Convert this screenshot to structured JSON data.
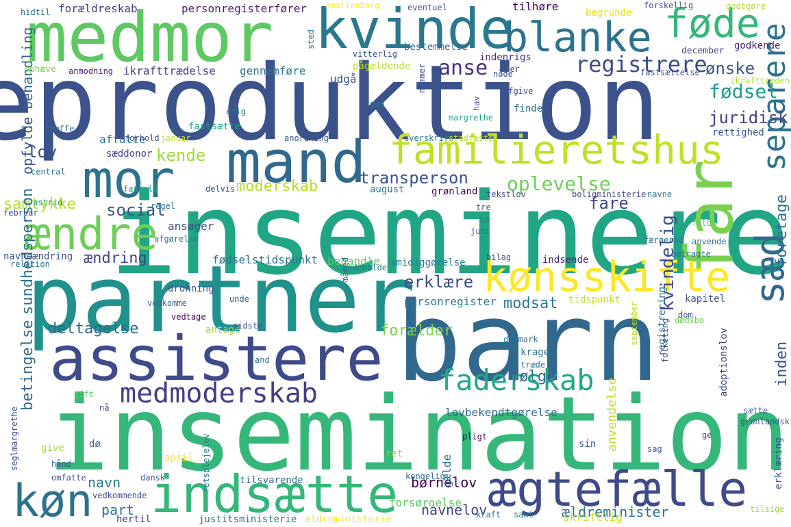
{
  "words": [
    {
      "text": "reproduktion",
      "color": "#3b528b"
    },
    {
      "text": "inseminere",
      "color": "#21a685"
    },
    {
      "text": "insemination",
      "color": "#35b779"
    },
    {
      "text": "barn",
      "color": "#31688e"
    },
    {
      "text": "partner",
      "color": "#21918c"
    },
    {
      "text": "medmor",
      "color": "#5ec962"
    },
    {
      "text": "assistere",
      "color": "#3e4a89"
    },
    {
      "text": "kvinde",
      "color": "#2a788e"
    },
    {
      "text": "familieretshus",
      "color": "#c2df23"
    },
    {
      "text": "far",
      "color": "#7ad151"
    },
    {
      "text": "mand",
      "color": "#31688e"
    },
    {
      "text": "blanke",
      "color": "#2c728e"
    },
    {
      "text": "føde",
      "color": "#35b779"
    },
    {
      "text": "mor",
      "color": "#2c728e"
    },
    {
      "text": "kønsskifte",
      "color": "#fde725"
    },
    {
      "text": "indsætte",
      "color": "#35b779"
    },
    {
      "text": "ægtefælle",
      "color": "#3e4a89"
    },
    {
      "text": "ændre",
      "color": "#6ece58"
    },
    {
      "text": "køn",
      "color": "#2c728e"
    },
    {
      "text": "sæd",
      "color": "#31688e"
    },
    {
      "text": "separere",
      "color": "#2c728e"
    },
    {
      "text": "medmoderskab",
      "color": "#433e85"
    },
    {
      "text": "faderskab",
      "color": "#22a884"
    },
    {
      "text": "registrere",
      "color": "#3e4a89"
    },
    {
      "text": "fødsel",
      "color": "#1f9e89"
    },
    {
      "text": "anse",
      "color": "#46327e"
    },
    {
      "text": "ønske",
      "color": "#3b528b"
    },
    {
      "text": "juridisk",
      "color": "#414487"
    },
    {
      "text": "transperson",
      "color": "#3b528b"
    },
    {
      "text": "oplevelse",
      "color": "#6ece58"
    },
    {
      "text": "fare",
      "color": "#3e4a89"
    },
    {
      "text": "social",
      "color": "#3b528b"
    },
    {
      "text": "kende",
      "color": "#9fda3a"
    },
    {
      "text": "lov",
      "color": "#3b528b"
    },
    {
      "text": "moderskab",
      "color": "#b5de2b"
    },
    {
      "text": "samtykke",
      "color": "#b5de2b"
    },
    {
      "text": "opfylde",
      "color": "#3b528b"
    },
    {
      "text": "behandling",
      "color": "#31688e"
    },
    {
      "text": "sundhedsperson",
      "color": "#2c728e"
    },
    {
      "text": "kvindelig",
      "color": "#3e4a89"
    },
    {
      "text": "erklære",
      "color": "#3e4a89"
    },
    {
      "text": "deltagelse",
      "color": "#31688e"
    },
    {
      "text": "modsat",
      "color": "#2a788e"
    },
    {
      "text": "forælder",
      "color": "#7ad151"
    },
    {
      "text": "ændring",
      "color": "#414487"
    },
    {
      "text": "følge",
      "color": "#31688e"
    },
    {
      "text": "foretage",
      "color": "#2c728e"
    },
    {
      "text": "inden",
      "color": "#3b528b"
    },
    {
      "text": "betingelse",
      "color": "#31688e"
    },
    {
      "text": "navn",
      "color": "#2a788e"
    },
    {
      "text": "part",
      "color": "#2c728e"
    },
    {
      "text": "børnelov",
      "color": "#440154"
    },
    {
      "text": "navnelov",
      "color": "#433e85"
    },
    {
      "text": "ældreminister",
      "color": "#2c728e"
    },
    {
      "text": "anvendelse",
      "color": "#c2df23"
    },
    {
      "text": "forældreskab",
      "color": "#433e85"
    },
    {
      "text": "personregisterfører",
      "color": "#481f70"
    },
    {
      "text": "ikrafttrædelse",
      "color": "#433e85"
    },
    {
      "text": "gennemføre",
      "color": "#2a788e"
    },
    {
      "text": "udgå",
      "color": "#3b528b"
    },
    {
      "text": "pågældende",
      "color": "#b5de2b"
    },
    {
      "text": "indenrigs",
      "color": "#472d7b"
    },
    {
      "text": "bestemmelse",
      "color": "#31688e"
    },
    {
      "text": "tilhøre",
      "color": "#440154"
    },
    {
      "text": "begrunde",
      "color": "#e5e419"
    },
    {
      "text": "godkende",
      "color": "#482475"
    },
    {
      "text": "december",
      "color": "#3e4a89"
    },
    {
      "text": "ophæve",
      "color": "#7ad151"
    },
    {
      "text": "anmodning",
      "color": "#481f70"
    },
    {
      "text": "affatte",
      "color": "#2c728e"
    },
    {
      "text": "forhold",
      "color": "#3b528b"
    },
    {
      "text": "fastsætte",
      "color": "#1f9e89"
    },
    {
      "text": "sæddonor",
      "color": "#414487"
    },
    {
      "text": "finde",
      "color": "#2c728e"
    },
    {
      "text": "rettighed",
      "color": "#3b528b"
    },
    {
      "text": "august",
      "color": "#2c728e"
    },
    {
      "text": "grønland",
      "color": "#440154"
    },
    {
      "text": "ansøger",
      "color": "#3e4a89"
    },
    {
      "text": "afgørelse",
      "color": "#2c728e"
    },
    {
      "text": "navneændring",
      "color": "#3b528b"
    },
    {
      "text": "relation",
      "color": "#2c728e"
    },
    {
      "text": "fødselstidspunkt",
      "color": "#2c728e"
    },
    {
      "text": "behandle",
      "color": "#5ec962"
    },
    {
      "text": "smidiggørelse",
      "color": "#2a788e"
    },
    {
      "text": "indsende",
      "color": "#482475"
    },
    {
      "text": "personregister",
      "color": "#2a788e"
    },
    {
      "text": "tidspunkt",
      "color": "#c2df23"
    },
    {
      "text": "kapitel",
      "color": "#3b528b"
    },
    {
      "text": "dronning",
      "color": "#3b528b"
    },
    {
      "text": "vedkomme",
      "color": "#31688e"
    },
    {
      "text": "vedtage",
      "color": "#440154"
    },
    {
      "text": "antage",
      "color": "#9fda3a"
    },
    {
      "text": "sidste",
      "color": "#3b528b"
    },
    {
      "text": "dødsbo",
      "color": "#6ece58"
    },
    {
      "text": "krage",
      "color": "#2c728e"
    },
    {
      "text": "registrering",
      "color": "#2c728e"
    },
    {
      "text": "lovbekendtgørelse",
      "color": "#31688e"
    },
    {
      "text": "adoptionslov",
      "color": "#3e4a89"
    },
    {
      "text": "tilsvarende",
      "color": "#31688e"
    },
    {
      "text": "kongelig",
      "color": "#31688e"
    },
    {
      "text": "gælde",
      "color": "#2c728e"
    },
    {
      "text": "forsørgelse",
      "color": "#5ec962"
    },
    {
      "text": "skriftlig",
      "color": "#c2df23"
    },
    {
      "text": "justitsministerie",
      "color": "#2c728e"
    },
    {
      "text": "ældreministerie",
      "color": "#fde725"
    },
    {
      "text": "hertil",
      "color": "#46327e"
    },
    {
      "text": "seglmargrethe",
      "color": "#3b528b"
    },
    {
      "text": "vedkommende",
      "color": "#3e4a89"
    },
    {
      "text": "omfatte",
      "color": "#3b528b"
    },
    {
      "text": "dansk",
      "color": "#3b528b"
    },
    {
      "text": "give",
      "color": "#9fda3a"
    },
    {
      "text": "april",
      "color": "#fde725"
    },
    {
      "text": "dø",
      "color": "#3b528b"
    },
    {
      "text": "hånd",
      "color": "#3b528b"
    },
    {
      "text": "gift",
      "color": "#5ec962"
    },
    {
      "text": "nå",
      "color": "#3b528b"
    },
    {
      "text": "retsplejelov",
      "color": "#2a788e"
    },
    {
      "text": "ret",
      "color": "#9fda3a"
    },
    {
      "text": "sin",
      "color": "#3b528b"
    },
    {
      "text": "sag",
      "color": "#3b528b"
    },
    {
      "text": "erklæring",
      "color": "#3b528b"
    },
    {
      "text": "tilsige",
      "color": "#9fda3a"
    },
    {
      "text": "kraft",
      "color": "#2c728e"
    },
    {
      "text": "samt",
      "color": "#2c728e"
    },
    {
      "text": "pligt",
      "color": "#440154"
    },
    {
      "text": "folketing",
      "color": "#3e4a89"
    },
    {
      "text": "september",
      "color": "#b5de2b"
    },
    {
      "text": "danmark",
      "color": "#2c728e"
    },
    {
      "text": "træde",
      "color": "#2c728e"
    },
    {
      "text": "and",
      "color": "#31688e"
    },
    {
      "text": "unde",
      "color": "#31688e"
    },
    {
      "text": "måned",
      "color": "#2c728e"
    },
    {
      "text": "indeholde",
      "color": "#2c728e"
    },
    {
      "text": "bilag",
      "color": "#3b528b"
    },
    {
      "text": "juni",
      "color": "#2c728e"
    },
    {
      "text": "delvis",
      "color": "#3b528b"
    },
    {
      "text": "regel",
      "color": "#2c728e"
    },
    {
      "text": "astrid",
      "color": "#1f9e89"
    },
    {
      "text": "central",
      "color": "#2c728e"
    },
    {
      "text": "fastslå",
      "color": "#1f9e89"
    },
    {
      "text": "februar",
      "color": "#3b528b"
    },
    {
      "text": "januar",
      "color": "#c2df23"
    },
    {
      "text": "træffe",
      "color": "#2c728e"
    },
    {
      "text": "enig",
      "color": "#2c728e"
    },
    {
      "text": "anordning",
      "color": "#3b528b"
    },
    {
      "text": "overskrift",
      "color": "#2c728e"
    },
    {
      "text": "stadfæste",
      "color": "#b5de2b"
    },
    {
      "text": "margrethe",
      "color": "#1f9e89"
    },
    {
      "text": "hav",
      "color": "#3b528b"
    },
    {
      "text": "gud",
      "color": "#2c728e"
    },
    {
      "text": "nummer",
      "color": "#3b528b"
    },
    {
      "text": "afgive",
      "color": "#3b528b"
    },
    {
      "text": "nåde",
      "color": "#3b528b"
    },
    {
      "text": "cper",
      "color": "#3b528b"
    },
    {
      "text": "vitterlig",
      "color": "#3b528b"
    },
    {
      "text": "sted",
      "color": "#2c728e"
    },
    {
      "text": "amalienborg",
      "color": "#fde725"
    },
    {
      "text": "eventuel",
      "color": "#3b528b"
    },
    {
      "text": "forskellig",
      "color": "#3b528b"
    },
    {
      "text": "godtgøre",
      "color": "#b5de2b"
    },
    {
      "text": "fastsættelse",
      "color": "#3e4a89"
    },
    {
      "text": "ikrafttræden",
      "color": "#b5de2b"
    },
    {
      "text": "hidtil",
      "color": "#2c728e"
    },
    {
      "text": "tekstlov",
      "color": "#3e4a89"
    },
    {
      "text": "boligministerie",
      "color": "#3e4a89"
    },
    {
      "text": "navne",
      "color": "#2c728e"
    },
    {
      "text": "tre",
      "color": "#3b528b"
    },
    {
      "text": "to",
      "color": "#2c728e"
    },
    {
      "text": "fuld",
      "color": "#5ec962"
    },
    {
      "text": "færøerne",
      "color": "#2c728e"
    },
    {
      "text": "anvende",
      "color": "#2c728e"
    },
    {
      "text": "betragte",
      "color": "#2c728e"
    },
    {
      "text": "dom",
      "color": "#3b528b"
    },
    {
      "text": "sætte",
      "color": "#3b528b"
    },
    {
      "text": "grønlandsk",
      "color": "#3b528b"
    },
    {
      "text": "ge",
      "color": "#3b528b"
    }
  ]
}
